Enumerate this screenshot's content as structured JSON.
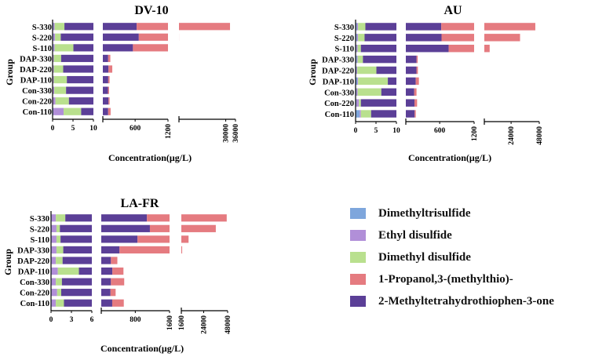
{
  "colors": {
    "Dimethyltrisulfide": "#7ea6dc",
    "Ethyl disulfide": "#b18fd8",
    "Dimethyl disulfide": "#b9e08e",
    "1-Propanol,3-(methylthio)-": "#e57b80",
    "2-Methyltetrahydrothiophen-3-one": "#5b3f97"
  },
  "legend": [
    {
      "label": "Dimethyltrisulfide",
      "color": "#7ea6dc"
    },
    {
      "label": "Ethyl disulfide",
      "color": "#b18fd8"
    },
    {
      "label": "Dimethyl disulfide",
      "color": "#b9e08e"
    },
    {
      "label": "1-Propanol,3-(methylthio)-",
      "color": "#e57b80"
    },
    {
      "label": "2-Methyltetrahydrothiophen-3-one",
      "color": "#5b3f97"
    }
  ],
  "chart_data": [
    {
      "type": "bar",
      "orientation": "horizontal",
      "stacked": true,
      "broken_axis": true,
      "title": "DV-10",
      "ylabel": "Group",
      "xlabel": "Concentration(μg/L)",
      "categories": [
        "S-330",
        "S-220",
        "S-110",
        "DAP-330",
        "DAP-220",
        "DAP-110",
        "Con-330",
        "Con-220",
        "Con-110"
      ],
      "axis_segments": [
        {
          "range": [
            0,
            10
          ],
          "ticks": [
            "0",
            "5",
            "10"
          ]
        },
        {
          "range": [
            10,
            1200
          ],
          "ticks": [
            "600",
            "1200"
          ]
        },
        {
          "range": [
            1200,
            36000
          ],
          "ticks": [
            "30000",
            "36000"
          ]
        }
      ],
      "series": [
        {
          "name": "Dimethyltrisulfide",
          "values": [
            0.2,
            0.2,
            0.2,
            0.1,
            0.1,
            0.1,
            0.1,
            0.1,
            0.2
          ]
        },
        {
          "name": "Ethyl disulfide",
          "values": [
            0.3,
            0.4,
            0.3,
            0.2,
            0.2,
            0.2,
            0.3,
            0.6,
            2.5
          ]
        },
        {
          "name": "Dimethyl disulfide",
          "values": [
            2.4,
            1.4,
            4.6,
            1.8,
            2.3,
            3.2,
            2.9,
            3.3,
            4.3
          ]
        },
        {
          "name": "2-Methyltetrahydrothiophen-3-one",
          "values": [
            625,
            665,
            555,
            105,
            110,
            105,
            100,
            110,
            100
          ]
        },
        {
          "name": "1-Propanol,3-(methylthio)-",
          "values": [
            32000,
            560,
            660,
            40,
            70,
            25,
            20,
            20,
            45
          ]
        }
      ]
    },
    {
      "type": "bar",
      "orientation": "horizontal",
      "stacked": true,
      "broken_axis": true,
      "title": "AU",
      "ylabel": "Group",
      "xlabel": "Concentration(μg/L)",
      "categories": [
        "S-330",
        "S-220",
        "S-110",
        "DAP-330",
        "DAP-220",
        "DAP-110",
        "Con-330",
        "Con-220",
        "Con-110"
      ],
      "axis_segments": [
        {
          "range": [
            0,
            10
          ],
          "ticks": [
            "0",
            "5",
            "10"
          ]
        },
        {
          "range": [
            10,
            1200
          ],
          "ticks": [
            "600",
            "1200"
          ]
        },
        {
          "range": [
            1200,
            48000
          ],
          "ticks": [
            "24000",
            "48000"
          ]
        }
      ],
      "series": [
        {
          "name": "Dimethyltrisulfide",
          "values": [
            0.3,
            0.3,
            0.2,
            0.3,
            0.2,
            0.4,
            0.2,
            0.2,
            1.0
          ]
        },
        {
          "name": "Ethyl disulfide",
          "values": [
            0.3,
            0.3,
            0.3,
            0.2,
            0.2,
            0.2,
            0.3,
            0.6,
            0.3
          ]
        },
        {
          "name": "Dimethyl disulfide",
          "values": [
            1.8,
            1.6,
            0.8,
            1.3,
            4.7,
            7.3,
            5.8,
            0.5,
            2.5
          ]
        },
        {
          "name": "2-Methyltetrahydrothiophen-3-one",
          "values": [
            625,
            630,
            755,
            195,
            190,
            175,
            150,
            160,
            160
          ]
        },
        {
          "name": "1-Propanol,3-(methylthio)-",
          "values": [
            44000,
            31000,
            5000,
            20,
            25,
            55,
            40,
            45,
            20
          ]
        }
      ]
    },
    {
      "type": "bar",
      "orientation": "horizontal",
      "stacked": true,
      "broken_axis": true,
      "title": "LA-FR",
      "ylabel": "Group",
      "xlabel": "Concentration(μg/L)",
      "categories": [
        "S-330",
        "S-220",
        "S-110",
        "DAP-330",
        "DAP-220",
        "DAP-110",
        "Con-330",
        "Con-220",
        "Con-110"
      ],
      "axis_segments": [
        {
          "range": [
            0,
            6
          ],
          "ticks": [
            "0",
            "3",
            "6"
          ]
        },
        {
          "range": [
            6,
            1600
          ],
          "ticks": [
            "800",
            "1600"
          ]
        },
        {
          "range": [
            1600,
            48000
          ],
          "ticks": [
            "1600",
            "24000",
            "48000"
          ]
        }
      ],
      "series": [
        {
          "name": "Dimethyltrisulfide",
          "values": [
            0.1,
            0.1,
            0.1,
            0.1,
            0.1,
            0.1,
            0.1,
            0.1,
            0.1
          ]
        },
        {
          "name": "Ethyl disulfide",
          "values": [
            0.6,
            0.7,
            0.7,
            0.7,
            0.6,
            0.9,
            0.6,
            0.8,
            0.6
          ]
        },
        {
          "name": "Dimethyl disulfide",
          "values": [
            1.4,
            0.5,
            0.6,
            1.0,
            1.0,
            3.1,
            0.9,
            0.6,
            1.2
          ]
        },
        {
          "name": "2-Methyltetrahydrothiophen-3-one",
          "values": [
            1070,
            1140,
            850,
            430,
            230,
            260,
            230,
            220,
            260
          ]
        },
        {
          "name": "1-Propanol,3-(methylthio)-",
          "values": [
            46000,
            35000,
            8000,
            2000,
            150,
            260,
            310,
            120,
            270
          ]
        }
      ]
    }
  ]
}
